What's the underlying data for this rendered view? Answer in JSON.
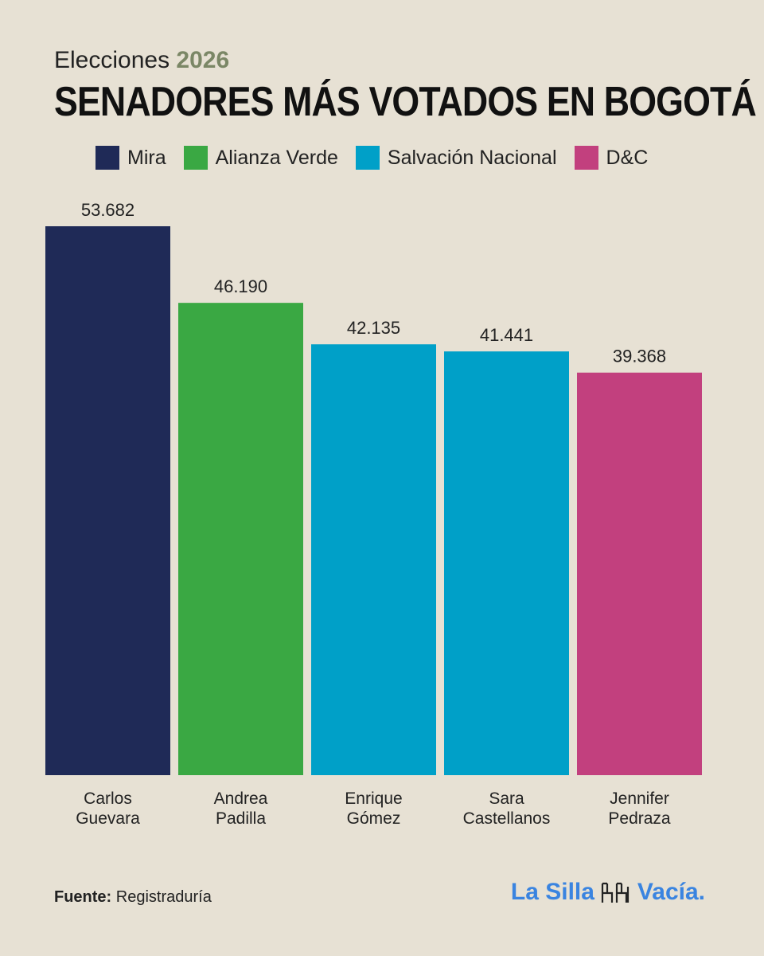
{
  "header": {
    "subtitle_prefix": "Elecciones",
    "subtitle_year": "2026",
    "title": "SENADORES MÁS VOTADOS EN BOGOTÁ"
  },
  "legend": [
    {
      "label": "Mira",
      "color": "#1f2a57"
    },
    {
      "label": "Alianza Verde",
      "color": "#3aa843"
    },
    {
      "label": "Salvación Nacional",
      "color": "#00a0c8"
    },
    {
      "label": "D&C",
      "color": "#c2407e"
    }
  ],
  "chart_data": {
    "type": "bar",
    "categories": [
      [
        "Carlos",
        "Guevara"
      ],
      [
        "Andrea",
        "Padilla"
      ],
      [
        "Enrique",
        "Gómez"
      ],
      [
        "Sara",
        "Castellanos"
      ],
      [
        "Jennifer",
        "Pedraza"
      ]
    ],
    "values": [
      53682,
      46190,
      42135,
      41441,
      39368
    ],
    "value_labels": [
      "53.682",
      "46.190",
      "42.135",
      "41.441",
      "39.368"
    ],
    "parties": [
      "Mira",
      "Alianza Verde",
      "Salvación Nacional",
      "Salvación Nacional",
      "D&C"
    ],
    "colors": [
      "#1f2a57",
      "#3aa843",
      "#00a0c8",
      "#00a0c8",
      "#c2407e"
    ],
    "ylim": [
      0,
      53682
    ],
    "grid": false,
    "legend_position": "top"
  },
  "footer": {
    "source_label": "Fuente:",
    "source_value": "Registraduría"
  },
  "logo": {
    "part1": "La Silla",
    "part2": "Vacía."
  }
}
